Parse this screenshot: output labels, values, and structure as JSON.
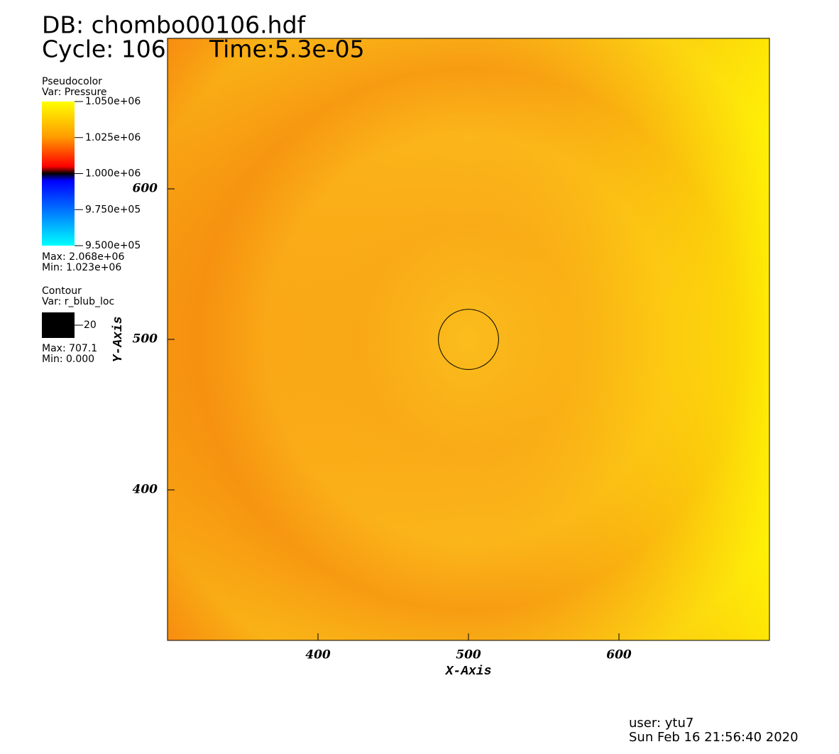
{
  "header": {
    "db": "DB: chombo00106.hdf",
    "cycle": "Cycle: 106",
    "time": "Time:5.3e-05"
  },
  "legend": {
    "pseudocolor": {
      "title": "Pseudocolor",
      "var": "Var: Pressure",
      "labels": [
        "1.050e+06",
        "1.025e+06",
        "1.000e+06",
        "9.750e+05",
        "9.500e+05"
      ],
      "max": "Max: 2.068e+06",
      "min": "Min:  1.023e+06"
    },
    "contour": {
      "title": "Contour",
      "var": "Var: r_blub_loc",
      "level": "20",
      "max": "Max: 707.1",
      "min": "Min: 0.000"
    }
  },
  "plot": {
    "xlabel": "X-Axis",
    "ylabel": "Y-Axis",
    "xlim": [
      300,
      700
    ],
    "ylim": [
      300,
      700
    ],
    "xticks": [
      400,
      500,
      600
    ],
    "yticks": [
      400,
      500,
      600
    ],
    "contour": {
      "center": [
        500,
        500
      ],
      "radius": 20
    }
  },
  "footer": {
    "user": "user: ytu7",
    "date": "Sun Feb 16 21:56:40 2020"
  }
}
